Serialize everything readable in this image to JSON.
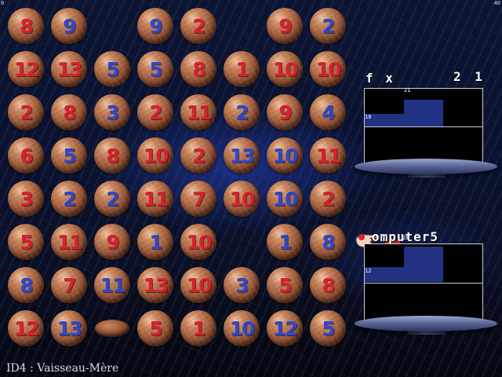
{
  "corner_left": "0",
  "corner_right": "40",
  "board": {
    "rows": [
      [
        {
          "n": "8",
          "c": "red"
        },
        {
          "n": "9",
          "c": "blue"
        },
        null,
        {
          "n": "9",
          "c": "blue"
        },
        {
          "n": "2",
          "c": "red"
        },
        null,
        {
          "n": "9",
          "c": "red"
        },
        {
          "n": "2",
          "c": "blue"
        }
      ],
      [
        {
          "n": "12",
          "c": "red"
        },
        {
          "n": "13",
          "c": "red"
        },
        {
          "n": "5",
          "c": "blue"
        },
        {
          "n": "5",
          "c": "blue"
        },
        {
          "n": "8",
          "c": "red"
        },
        {
          "n": "1",
          "c": "red"
        },
        {
          "n": "10",
          "c": "red"
        },
        {
          "n": "10",
          "c": "red"
        }
      ],
      [
        {
          "n": "2",
          "c": "red"
        },
        {
          "n": "8",
          "c": "red"
        },
        {
          "n": "3",
          "c": "blue"
        },
        {
          "n": "2",
          "c": "red"
        },
        {
          "n": "11",
          "c": "red"
        },
        {
          "n": "2",
          "c": "blue"
        },
        {
          "n": "9",
          "c": "red"
        },
        {
          "n": "4",
          "c": "blue"
        }
      ],
      [
        {
          "n": "6",
          "c": "red"
        },
        {
          "n": "5",
          "c": "blue"
        },
        {
          "n": "8",
          "c": "red"
        },
        {
          "n": "10",
          "c": "red"
        },
        {
          "n": "2",
          "c": "red"
        },
        {
          "n": "13",
          "c": "blue"
        },
        {
          "n": "10",
          "c": "blue"
        },
        {
          "n": "11",
          "c": "red"
        }
      ],
      [
        {
          "n": "3",
          "c": "red"
        },
        {
          "n": "2",
          "c": "blue"
        },
        {
          "n": "2",
          "c": "blue"
        },
        {
          "n": "11",
          "c": "red"
        },
        {
          "n": "7",
          "c": "red"
        },
        {
          "n": "10",
          "c": "red"
        },
        {
          "n": "10",
          "c": "blue"
        },
        {
          "n": "2",
          "c": "red"
        }
      ],
      [
        {
          "n": "5",
          "c": "red"
        },
        {
          "n": "11",
          "c": "red"
        },
        {
          "n": "9",
          "c": "red"
        },
        {
          "n": "1",
          "c": "blue"
        },
        {
          "n": "10",
          "c": "red"
        },
        null,
        {
          "n": "1",
          "c": "blue"
        },
        {
          "n": "8",
          "c": "blue"
        }
      ],
      [
        {
          "n": "8",
          "c": "blue"
        },
        {
          "n": "7",
          "c": "red"
        },
        {
          "n": "11",
          "c": "blue"
        },
        {
          "n": "13",
          "c": "red"
        },
        {
          "n": "10",
          "c": "red"
        },
        {
          "n": "3",
          "c": "blue"
        },
        {
          "n": "5",
          "c": "red"
        },
        {
          "n": "8",
          "c": "red"
        }
      ],
      [
        {
          "n": "12",
          "c": "red"
        },
        {
          "n": "13",
          "c": "blue"
        },
        {
          "broken": true
        },
        {
          "n": "5",
          "c": "red"
        },
        {
          "n": "1",
          "c": "red"
        },
        {
          "n": "10",
          "c": "blue"
        },
        {
          "n": "12",
          "c": "blue"
        },
        {
          "n": "5",
          "c": "blue"
        }
      ]
    ]
  },
  "player_panel": {
    "name": "f x",
    "score": "2 1",
    "top_value": "21",
    "left_value": "10",
    "left_bar_fraction": 0.1,
    "right_bar_fraction": 0.21
  },
  "computer_panel": {
    "name": "omputer5",
    "small_value": "28",
    "left_value": "12",
    "left_bar_fraction": 0.12,
    "right_bar_fraction": 0.28
  },
  "footer": {
    "level": "ID4  : Vaisseau-Mère"
  },
  "colors": {
    "red_number": "#d8212c",
    "blue_number": "#2f47c8",
    "bar": "#223283"
  }
}
